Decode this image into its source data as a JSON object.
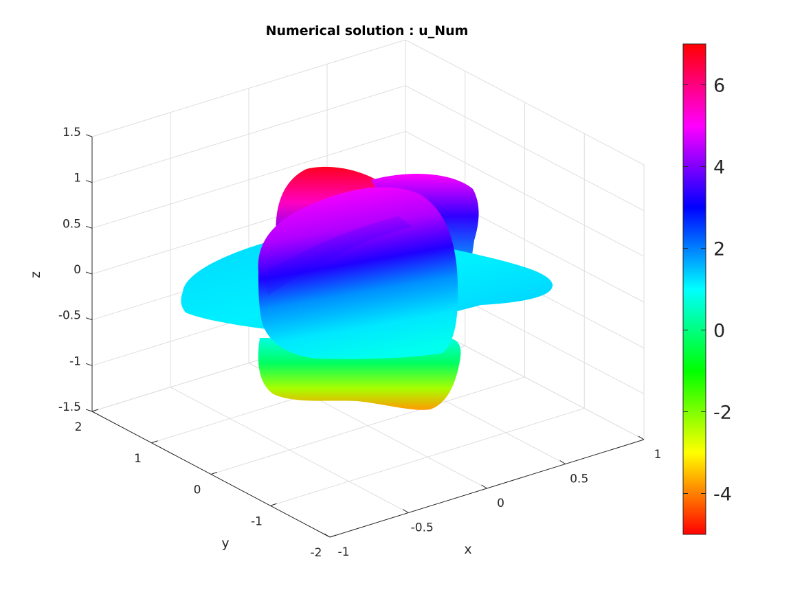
{
  "chart_data": {
    "type": "surface3d",
    "title": "Numerical solution : u_Num",
    "xlabel": "x",
    "ylabel": "y",
    "zlabel": "z",
    "xlim": [
      -1,
      1
    ],
    "ylim": [
      -2,
      2
    ],
    "zlim": [
      -1.5,
      1.5
    ],
    "x_ticks": [
      "-1",
      "-0.5",
      "0",
      "0.5",
      "1"
    ],
    "y_ticks": [
      "-2",
      "-1",
      "0",
      "1",
      "2"
    ],
    "z_ticks": [
      "-1.5",
      "-1",
      "-0.5",
      "0",
      "0.5",
      "1",
      "1.5"
    ],
    "grid": true,
    "colorbar": {
      "location": "right",
      "colormap": "hsv",
      "clim": [
        -5,
        7
      ],
      "ticks": [
        "-4",
        "-2",
        "0",
        "2",
        "4",
        "6"
      ]
    }
  }
}
